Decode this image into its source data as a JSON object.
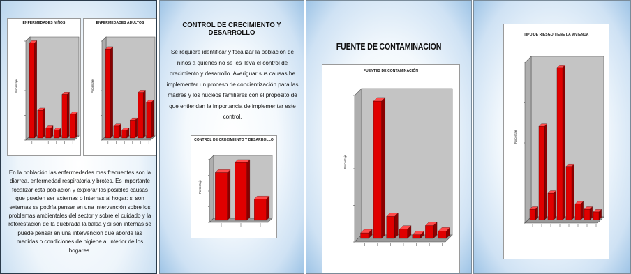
{
  "slides": [
    {
      "charts": [
        {
          "title": "ENFERMEDADES NIÑOS",
          "ylabel": "Porcentaje"
        },
        {
          "title": "ENFERMEDADES ADULTOS",
          "ylabel": "Porcentaje"
        }
      ],
      "text": "En la población  las enfermedades mas frecuentes son la diarrea, enfermedad respiratoria y brotes. Es importante focalizar esta población y explorar las posibles causas que pueden ser externas o internas al hogar: si son externas se podría pensar en una intervención sobre los problemas ambientales del sector y sobre el cuidado y la reforestación de la quebrada la balsa y si son internas se puede pensar en una intervención que aborde las medidas o condiciones de higiene al interior de los hogares."
    },
    {
      "heading": "CONTROL  DE CRECIMIENTO Y DESARROLLO",
      "text": "Se requiere identificar y focalizar la población de niños a quienes no se les lleva el control de crecimiento y desarrollo. Averiguar sus causas he implementar un proceso de concientización para las madres y los núcleos familiares  con el propósito de que entiendan la importancia de implementar este control.",
      "charts": [
        {
          "title": "CONTROL DE CRECIMIENTO Y DESARROLLO",
          "ylabel": "Porcentaje"
        }
      ]
    },
    {
      "heading": "FUENTE DE CONTAMINACION",
      "charts": [
        {
          "title": "FUENTES DE CONTAMINACIÓN",
          "ylabel": "Porcentaje"
        }
      ]
    },
    {
      "charts": [
        {
          "title": "TIPO DE RIESGO TIENE LA VIVIENDA",
          "ylabel": "Porcentaje"
        }
      ]
    }
  ],
  "colors": {
    "bar": "#e00000",
    "bar_side": "#8a0000",
    "bar_top": "#ff4a4a",
    "plot_wall": "#c4c4c4",
    "plot_floor": "#9a9a9a"
  },
  "chart_data": [
    {
      "type": "bar",
      "title": "ENFERMEDADES NIÑOS",
      "ylabel": "Porcentaje",
      "values": [
        48,
        14,
        5,
        4,
        22,
        12
      ]
    },
    {
      "type": "bar",
      "title": "ENFERMEDADES ADULTOS",
      "ylabel": "Porcentaje",
      "values": [
        45,
        6,
        4,
        9,
        23,
        18
      ]
    },
    {
      "type": "bar",
      "title": "CONTROL DE CRECIMIENTO Y DESARROLLO",
      "ylabel": "Porcentaje",
      "values": [
        38,
        46,
        17
      ]
    },
    {
      "type": "bar",
      "title": "FUENTES DE CONTAMINACIÓN",
      "ylabel": "Porcentaje",
      "values": [
        3,
        75,
        12,
        5,
        2,
        7,
        4
      ]
    },
    {
      "type": "bar",
      "title": "TIPO DE RIESGO TIENE LA VIVIENDA",
      "ylabel": "Porcentaje",
      "values": [
        4,
        35,
        10,
        57,
        20,
        6,
        4,
        3
      ]
    }
  ]
}
